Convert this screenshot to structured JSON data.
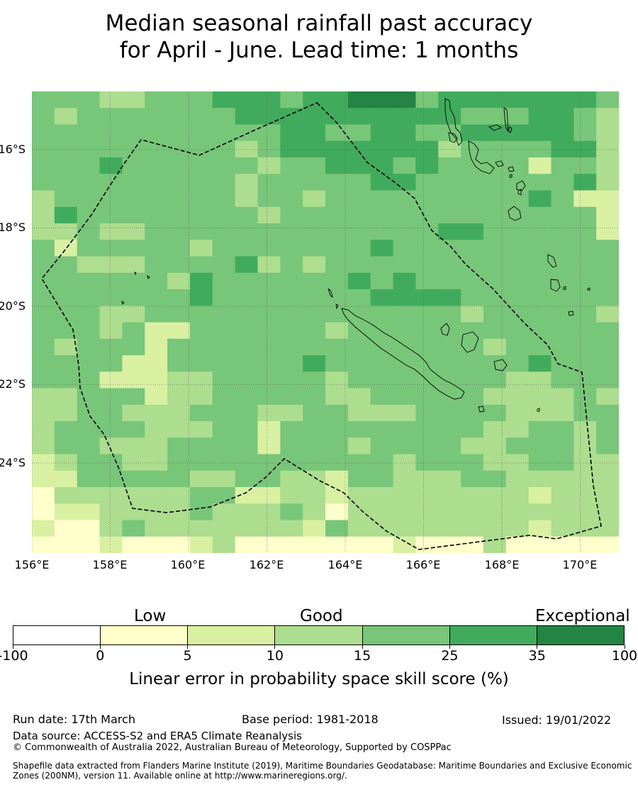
{
  "title": {
    "line1": "Median seasonal rainfall past accuracy",
    "line2": "for April - June. Lead time: 1 months"
  },
  "map": {
    "lat_labels": [
      "16°S",
      "18°S",
      "20°S",
      "22°S",
      "24°S"
    ],
    "lon_labels": [
      "156°E",
      "158°E",
      "160°E",
      "162°E",
      "164°E",
      "166°E",
      "168°E",
      "170°E"
    ],
    "grid_lines": "dotted",
    "boundary_style": "dashed",
    "skill_grid": [
      "44433444555455666455555554",
      "43444444455555555554445543",
      "44444444444554455445555543",
      "44444444434555555534444553",
      "44454444443445554544442443",
      "44444444434444455444444453",
      "34444444434434444444445422",
      "35444444443444444444444442",
      "33433444444444444455444442",
      "42444443444444454444444444",
      "44333444453434444444444444",
      "44444435444444545444444444",
      "44444445444444455554444444",
      "44433444444444444443444443",
      "44434224444443444444444444",
      "43444244444444444444344444",
      "44442244444454444444445444",
      "44422233444443444444433444",
      "33444233444443344444333343",
      "33443334443344333444433344",
      "34444333442444444444334434",
      "34433344442444344443344434",
      "23443344444444443444334433",
      "22444443344332443334433333",
      "13333334422332333333332333",
      "12233334333431333333333333",
      "21134333333324333333332333",
      "11121112311111112111311111"
    ],
    "skill_grid_legend": "each digit = colour class index (0-6) into colorbar.colors, row-major from north-west"
  },
  "colorbar": {
    "categories": [
      "Low",
      "Good",
      "Exceptional"
    ],
    "ticks": [
      "-100",
      "0",
      "5",
      "10",
      "15",
      "25",
      "35",
      "100"
    ],
    "colors": [
      "#ffffff",
      "#ffffcc",
      "#d9f0a3",
      "#addd8e",
      "#78c679",
      "#41ab5d",
      "#238443"
    ],
    "label": "Linear error in probability space skill score (%)"
  },
  "footer": {
    "run_date": "Run date: 17th March",
    "base_period": "Base period: 1981-2018",
    "issued": "Issued: 19/01/2022",
    "data_source": "Data source: ACCESS-S2 and ERA5 Climate Reanalysis",
    "copyright": "© Commonwealth of Australia 2022, Australian Bureau of Meteorology, Supported by COSPPac",
    "shapefile": "Shapefile data extracted from Flanders Marine Institute (2019), Maritime Boundaries Geodatabase: Maritime Boundaries and Exclusive Economic Zones (200NM), version 11. Available online at http://www.marineregions.org/."
  }
}
